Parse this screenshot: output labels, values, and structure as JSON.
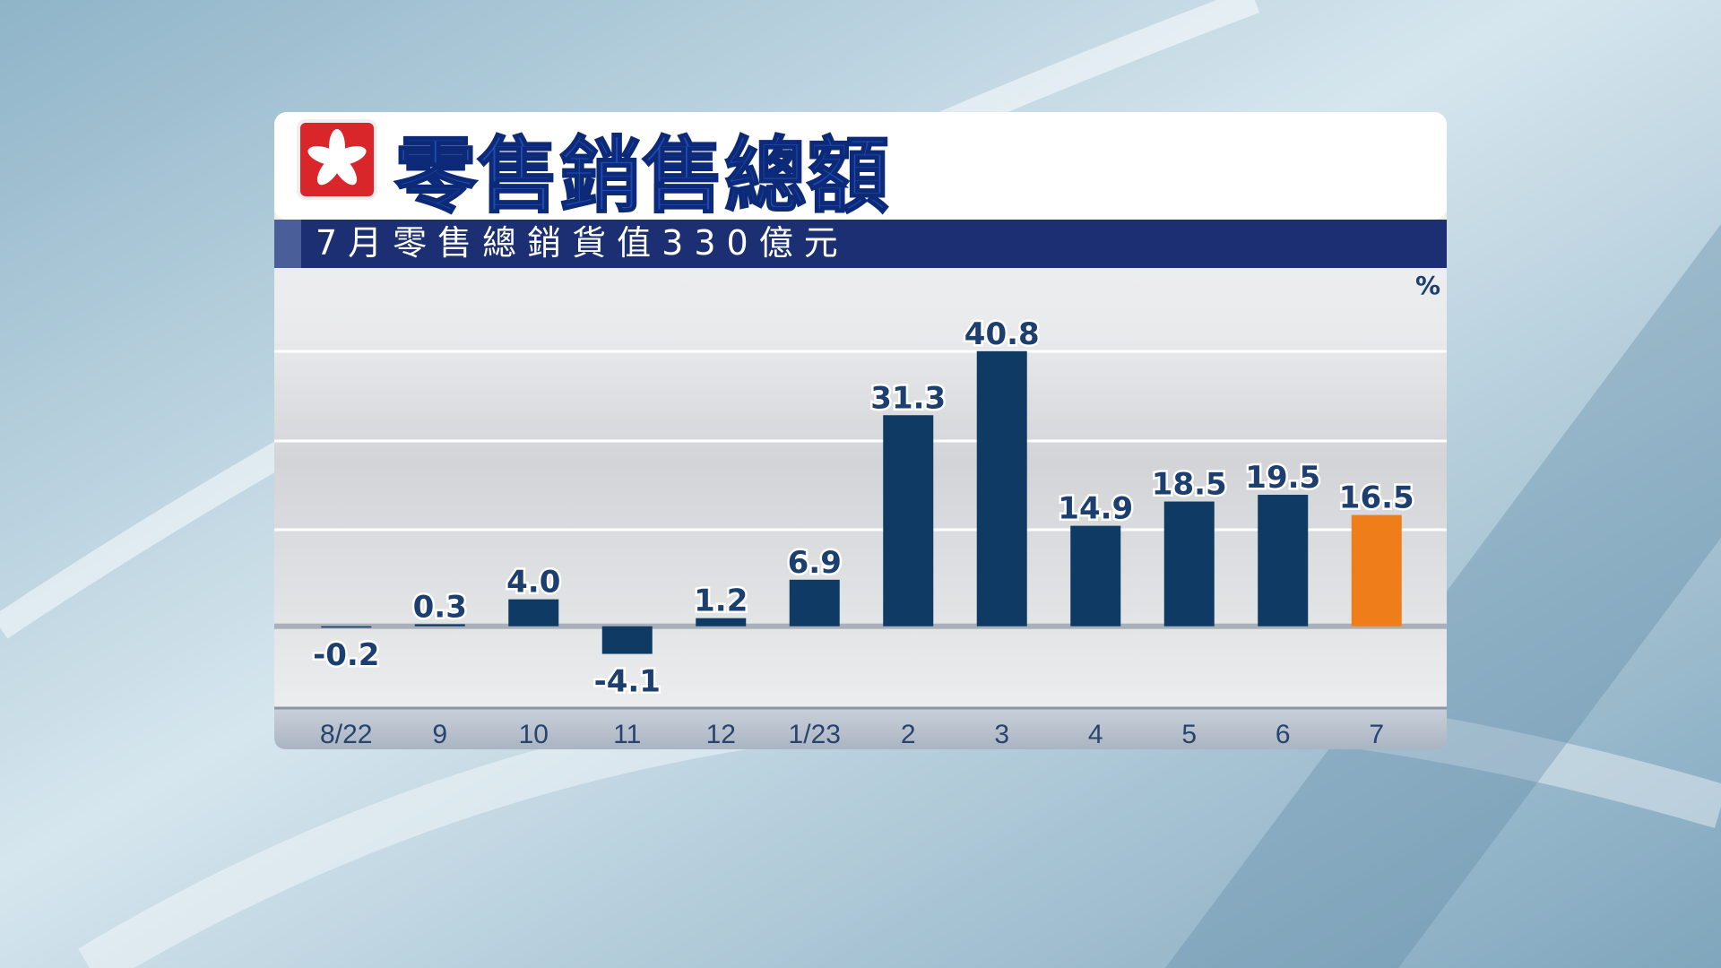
{
  "chart_data": {
    "type": "bar",
    "title": "零售銷售總額",
    "subtitle": "7月零售總銷貨值330億元",
    "y_unit": "%",
    "categories": [
      "8/22",
      "9",
      "10",
      "11",
      "12",
      "1/23",
      "2",
      "3",
      "4",
      "5",
      "6",
      "7"
    ],
    "values": [
      -0.2,
      0.3,
      4.0,
      -4.1,
      1.2,
      6.9,
      31.3,
      40.8,
      14.9,
      18.5,
      19.5,
      16.5
    ],
    "value_labels": [
      "-0.2",
      "0.3",
      "4.0",
      "-4.1",
      "1.2",
      "6.9",
      "31.3",
      "40.8",
      "14.9",
      "18.5",
      "19.5",
      "16.5"
    ],
    "colors": [
      "#0f3a63",
      "#0f3a63",
      "#0f3a63",
      "#0f3a63",
      "#0f3a63",
      "#0f3a63",
      "#0f3a63",
      "#0f3a63",
      "#0f3a63",
      "#0f3a63",
      "#0f3a63",
      "#ee7d1a"
    ],
    "ylim": [
      -12,
      53
    ]
  }
}
